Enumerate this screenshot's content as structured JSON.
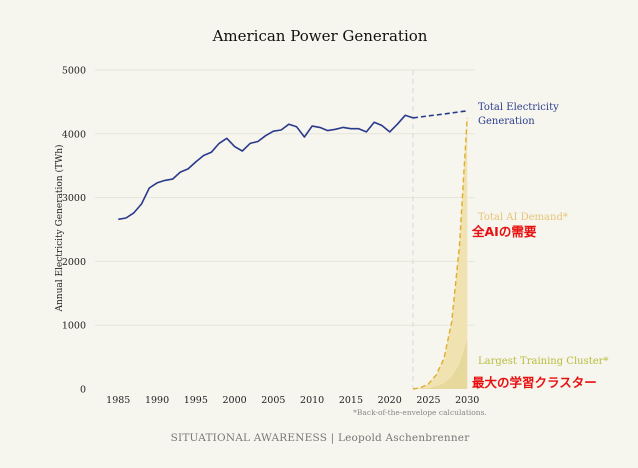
{
  "chart_data": {
    "type": "line",
    "title": "American Power Generation",
    "ylabel": "Annual Electricity Generation (TWh)",
    "xlabel": "",
    "xlim": [
      1982,
      2031
    ],
    "ylim": [
      0,
      5000
    ],
    "x_ticks": [
      1985,
      1990,
      1995,
      2000,
      2005,
      2010,
      2015,
      2020,
      2025,
      2030
    ],
    "y_ticks": [
      0,
      1000,
      2000,
      3000,
      4000,
      5000
    ],
    "grid": "horizontal",
    "projection_start": 2023,
    "series": [
      {
        "name": "Total Electricity Generation",
        "style": "solid",
        "color": "#2a3a8c",
        "x": [
          1985,
          1986,
          1987,
          1988,
          1989,
          1990,
          1991,
          1992,
          1993,
          1994,
          1995,
          1996,
          1997,
          1998,
          1999,
          2000,
          2001,
          2002,
          2003,
          2004,
          2005,
          2006,
          2007,
          2008,
          2009,
          2010,
          2011,
          2012,
          2013,
          2014,
          2015,
          2016,
          2017,
          2018,
          2019,
          2020,
          2021,
          2022,
          2023
        ],
        "values": [
          2660,
          2680,
          2760,
          2900,
          3150,
          3230,
          3270,
          3290,
          3400,
          3450,
          3560,
          3660,
          3710,
          3850,
          3930,
          3800,
          3730,
          3850,
          3880,
          3970,
          4040,
          4060,
          4150,
          4110,
          3950,
          4120,
          4100,
          4050,
          4070,
          4100,
          4080,
          4080,
          4030,
          4180,
          4130,
          4030,
          4150,
          4290,
          4250
        ]
      },
      {
        "name": "Total Electricity Generation (projection)",
        "style": "dashed",
        "color": "#2a3a8c",
        "x": [
          2023,
          2025,
          2027,
          2030
        ],
        "values": [
          4250,
          4280,
          4310,
          4360
        ]
      },
      {
        "name": "Total AI Demand*",
        "style": "dashed",
        "color": "#e1ad2a",
        "fill": "#f0dfa6",
        "x": [
          2023,
          2024,
          2025,
          2026,
          2027,
          2028,
          2029,
          2030
        ],
        "values": [
          0,
          20,
          80,
          220,
          480,
          1050,
          2250,
          4250
        ]
      },
      {
        "name": "Largest Training Cluster*",
        "style": "area",
        "color": "#e6d89a",
        "x": [
          2023,
          2024,
          2025,
          2026,
          2027,
          2028,
          2029,
          2030
        ],
        "values": [
          0,
          5,
          15,
          40,
          90,
          190,
          390,
          780
        ]
      }
    ],
    "annotations": {
      "total_label": [
        "Total Electricity",
        "Generation"
      ],
      "ai_label": "Total AI Demand*",
      "ai_label_ja": "全AIの需要",
      "cluster_label": "Largest Training Cluster*",
      "cluster_label_ja": "最大の学習クラスター",
      "note": "*Back-of-the-envelope calculations."
    }
  },
  "footer": "SITUATIONAL AWARENESS | Leopold Aschenbrenner"
}
